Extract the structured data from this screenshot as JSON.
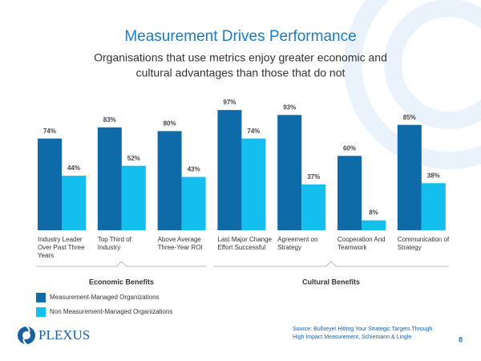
{
  "chart_data": {
    "type": "bar",
    "title": "Measurement Drives Performance",
    "subtitle": [
      "Organisations that use metrics enjoy greater economic and",
      "cultural advantages than those that do not"
    ],
    "categories": [
      "Industry Leader Over Past Three Years",
      "Top Third of Industry",
      "Above Average Three-Year ROI",
      "Last Major Change Effort Successful",
      "Agreement on Strategy",
      "Cooperation And Teamwork",
      "Communication of Strategy"
    ],
    "series": [
      {
        "name": "Measurement-Managed Organizations",
        "color": "#0f6aa8",
        "values": [
          74,
          83,
          80,
          97,
          93,
          60,
          85
        ],
        "value_labels": [
          "74%",
          "83%",
          "80%",
          "97%",
          "93%",
          "60%",
          "85%"
        ]
      },
      {
        "name": "Non Measurement-Managed Organizations",
        "color": "#14bff0",
        "values": [
          44,
          52,
          43,
          74,
          37,
          8,
          38
        ],
        "value_labels": [
          "44%",
          "52%",
          "43%",
          "74%",
          "37%",
          "8%",
          "38%"
        ]
      }
    ],
    "ylim": [
      0,
      100
    ],
    "groups": [
      "Economic Benefits",
      "Cultural Benefits"
    ],
    "source": [
      "Source: Bullseye! Hitting Your Strategic Targets Through",
      "High Impact Measurement, Schiemann & Lingle"
    ],
    "logo": "PLEXUS",
    "page_number": "8"
  }
}
